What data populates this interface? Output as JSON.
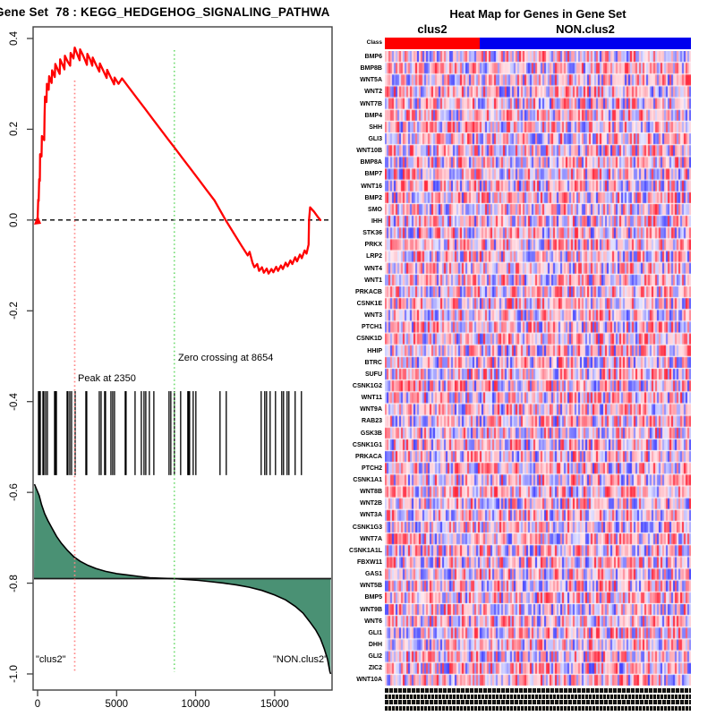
{
  "left_panel": {
    "title": "Gene Set  78 : KEGG_HEDGEHOG_SIGNALING_PATHWA"
  },
  "heatmap_panel": {
    "title": "Heat Map for Genes in Gene Set",
    "class_label": "Class",
    "group1": "clus2",
    "group2": "NON.clus2"
  },
  "chart_data": [
    {
      "type": "line",
      "title": "Gene Set  78 : KEGG_HEDGEHOG_SIGNALING_PATHWA",
      "xlabel": "",
      "ylabel": "",
      "xlim": [
        0,
        18600
      ],
      "ylim": [
        -1.0,
        0.4
      ],
      "grid": false,
      "x_ticks": [
        0,
        5000,
        10000,
        15000
      ],
      "y_ticks": [
        "0.4",
        "0.2",
        "0.0",
        "-0.2",
        "-0.4",
        "-0.6",
        "-0.8",
        "-1.0"
      ],
      "peak_x": 2350,
      "zero_cross_x": 8654,
      "annotations": {
        "peak": "Peak at 2350",
        "zero_cross": "Zero crossing at 8654",
        "group_left": "\"clus2\"",
        "group_right": "\"NON.clus2\""
      },
      "colors": {
        "es_line": "#FF0000",
        "zero_dash": "#000000",
        "peak_vline": "#FF8585",
        "zero_vline": "#77DD77",
        "metric_fill": "#4A9174",
        "metric_line": "#000000",
        "hit_tick": "#000000",
        "box": "#404040"
      },
      "series": [
        {
          "name": "running_enrichment_score",
          "points": [
            [
              0,
              0.0
            ],
            [
              40,
              0.045
            ],
            [
              70,
              0.042
            ],
            [
              100,
              0.09
            ],
            [
              140,
              0.086
            ],
            [
              160,
              0.145
            ],
            [
              250,
              0.14
            ],
            [
              270,
              0.185
            ],
            [
              420,
              0.176
            ],
            [
              440,
              0.23
            ],
            [
              470,
              0.272
            ],
            [
              560,
              0.26
            ],
            [
              590,
              0.3
            ],
            [
              700,
              0.287
            ],
            [
              730,
              0.317
            ],
            [
              890,
              0.302
            ],
            [
              920,
              0.33
            ],
            [
              1090,
              0.315
            ],
            [
              1120,
              0.344
            ],
            [
              1290,
              0.33
            ],
            [
              1400,
              0.322
            ],
            [
              1430,
              0.354
            ],
            [
              1610,
              0.34
            ],
            [
              1700,
              0.332
            ],
            [
              1730,
              0.362
            ],
            [
              1920,
              0.348
            ],
            [
              2060,
              0.34
            ],
            [
              2090,
              0.368
            ],
            [
              2270,
              0.356
            ],
            [
              2350,
              0.38
            ],
            [
              2460,
              0.37
            ],
            [
              2570,
              0.36
            ],
            [
              2660,
              0.352
            ],
            [
              2690,
              0.376
            ],
            [
              2860,
              0.364
            ],
            [
              3010,
              0.352
            ],
            [
              3120,
              0.342
            ],
            [
              3150,
              0.366
            ],
            [
              3320,
              0.354
            ],
            [
              3460,
              0.34
            ],
            [
              3490,
              0.358
            ],
            [
              3700,
              0.342
            ],
            [
              3910,
              0.327
            ],
            [
              3940,
              0.345
            ],
            [
              4160,
              0.329
            ],
            [
              4370,
              0.313
            ],
            [
              4400,
              0.331
            ],
            [
              4620,
              0.315
            ],
            [
              4840,
              0.299
            ],
            [
              4870,
              0.314
            ],
            [
              5120,
              0.3
            ],
            [
              5340,
              0.312
            ],
            [
              5800,
              0.291
            ],
            [
              6300,
              0.268
            ],
            [
              6800,
              0.245
            ],
            [
              7300,
              0.222
            ],
            [
              7800,
              0.199
            ],
            [
              8300,
              0.176
            ],
            [
              8654,
              0.16
            ],
            [
              9200,
              0.135
            ],
            [
              9700,
              0.112
            ],
            [
              10200,
              0.089
            ],
            [
              10700,
              0.066
            ],
            [
              11200,
              0.043
            ],
            [
              11900,
              0.0
            ],
            [
              12400,
              -0.028
            ],
            [
              12900,
              -0.056
            ],
            [
              13300,
              -0.078
            ],
            [
              13420,
              -0.07
            ],
            [
              13600,
              -0.094
            ],
            [
              13720,
              -0.104
            ],
            [
              13900,
              -0.097
            ],
            [
              14020,
              -0.112
            ],
            [
              14200,
              -0.104
            ],
            [
              14320,
              -0.116
            ],
            [
              14500,
              -0.107
            ],
            [
              14620,
              -0.118
            ],
            [
              14800,
              -0.108
            ],
            [
              14920,
              -0.115
            ],
            [
              15100,
              -0.103
            ],
            [
              15220,
              -0.112
            ],
            [
              15400,
              -0.1
            ],
            [
              15520,
              -0.108
            ],
            [
              15700,
              -0.094
            ],
            [
              15820,
              -0.102
            ],
            [
              16000,
              -0.089
            ],
            [
              16120,
              -0.097
            ],
            [
              16300,
              -0.082
            ],
            [
              16420,
              -0.091
            ],
            [
              16600,
              -0.076
            ],
            [
              16720,
              -0.084
            ],
            [
              16900,
              -0.067
            ],
            [
              17020,
              -0.074
            ],
            [
              17150,
              -0.054
            ],
            [
              17180,
              0.0
            ],
            [
              17250,
              0.028
            ],
            [
              17500,
              0.018
            ],
            [
              17750,
              0.006
            ],
            [
              17900,
              0.0
            ]
          ]
        },
        {
          "name": "ranked_list_metric",
          "baseline": -0.79,
          "points": [
            [
              -200,
              -0.582
            ],
            [
              100,
              -0.607
            ],
            [
              250,
              -0.627
            ],
            [
              450,
              -0.647
            ],
            [
              650,
              -0.662
            ],
            [
              900,
              -0.678
            ],
            [
              1200,
              -0.697
            ],
            [
              1500,
              -0.712
            ],
            [
              1900,
              -0.728
            ],
            [
              2300,
              -0.742
            ],
            [
              2700,
              -0.752
            ],
            [
              3200,
              -0.761
            ],
            [
              3700,
              -0.768
            ],
            [
              4300,
              -0.774
            ],
            [
              5000,
              -0.779
            ],
            [
              5700,
              -0.782
            ],
            [
              6400,
              -0.785
            ],
            [
              7100,
              -0.788
            ],
            [
              7800,
              -0.789
            ],
            [
              8654,
              -0.79
            ],
            [
              9400,
              -0.792
            ],
            [
              10200,
              -0.794
            ],
            [
              11000,
              -0.797
            ],
            [
              11800,
              -0.8
            ],
            [
              12600,
              -0.804
            ],
            [
              13400,
              -0.809
            ],
            [
              14200,
              -0.816
            ],
            [
              15000,
              -0.826
            ],
            [
              15700,
              -0.837
            ],
            [
              16300,
              -0.851
            ],
            [
              16800,
              -0.866
            ],
            [
              17200,
              -0.884
            ],
            [
              17600,
              -0.903
            ],
            [
              17900,
              -0.922
            ],
            [
              18150,
              -0.945
            ],
            [
              18350,
              -0.968
            ],
            [
              18500,
              -0.995
            ],
            [
              18550,
              -1.0
            ]
          ]
        }
      ],
      "hit_ranks": [
        57,
        110,
        170,
        340,
        395,
        510,
        620,
        1075,
        1130,
        1190,
        1868,
        1920,
        2038,
        2150,
        2377,
        3056,
        3110,
        3905,
        4019,
        4245,
        4300,
        4641,
        4754,
        4867,
        5546,
        5600,
        6169,
        6565,
        6735,
        6848,
        7074,
        7357,
        8319,
        8432,
        8658,
        9054,
        9507,
        9560,
        9620,
        9847,
        10016,
        11545,
        11941,
        14150,
        14376,
        14490,
        14716,
        15056,
        15452,
        15565,
        15792,
        15905,
        16300,
        16697
      ],
      "hit_band_values": [
        -0.377,
        -0.562
      ]
    },
    {
      "type": "heatmap",
      "title": "Heat Map for Genes in Gene Set",
      "genes": [
        "BMP6",
        "BMP8B",
        "WNT5A",
        "WNT2",
        "WNT7B",
        "BMP4",
        "SHH",
        "GLI3",
        "WNT10B",
        "BMP8A",
        "BMP7",
        "WNT16",
        "BMP2",
        "SMO",
        "IHH",
        "STK36",
        "PRKX",
        "LRP2",
        "WNT4",
        "WNT1",
        "PRKACB",
        "CSNK1E",
        "WNT3",
        "PTCH1",
        "CSNK1D",
        "HHIP",
        "BTRC",
        "SUFU",
        "CSNK1G2",
        "WNT11",
        "WNT9A",
        "RAB23",
        "GSK3B",
        "CSNK1G1",
        "PRKACA",
        "PTCH2",
        "CSNK1A1",
        "WNT8B",
        "WNT2B",
        "WNT3A",
        "CSNK1G3",
        "WNT7A",
        "CSNK1A1L",
        "FBXW11",
        "GAS1",
        "WNT5B",
        "BMP5",
        "WNT9B",
        "WNT6",
        "GLI1",
        "DHH",
        "GLI2",
        "ZIC2",
        "WNT10A"
      ],
      "n_samples": 171,
      "n_group1": 53,
      "groups": [
        "clus2",
        "NON.clus2"
      ],
      "class_colors": {
        "clus2": "#FF0000",
        "NON.clus2": "#0000EE"
      },
      "palette": {
        "strong_pos": "#FF283C",
        "weak": "#F2ECF2",
        "strong_neg": "#1E1EFF"
      },
      "seed": 42
    }
  ]
}
